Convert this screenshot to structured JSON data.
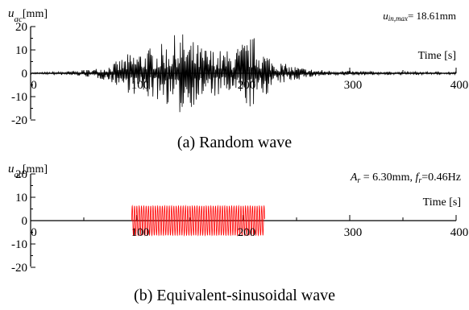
{
  "charts": [
    {
      "y_symbol": "u",
      "y_subscript": "ac",
      "y_unit": "[mm]",
      "x_label": "Time [s]",
      "annotation": "u",
      "annotation_sub": "in,max",
      "annotation_value": "= 18.61mm",
      "caption": "(a) Random wave"
    },
    {
      "y_symbol": "u",
      "y_subscript": "ac",
      "y_unit": "[mm]",
      "x_label": "Time [s]",
      "annotation_A": "A",
      "annotation_A_sub": "r",
      "annotation_A_value": " = 6.30mm, ",
      "annotation_f": "f",
      "annotation_f_sub": "r",
      "annotation_f_value": "=0.46Hz",
      "caption": "(b) Equivalent-sinusoidal wave"
    }
  ],
  "chart_data": [
    {
      "type": "line",
      "title": "(a) Random wave",
      "xlabel": "Time [s]",
      "ylabel": "u_ac [mm]",
      "xlim": [
        0,
        400
      ],
      "ylim": [
        -20,
        20
      ],
      "x_ticks": [
        "0",
        "100",
        "200",
        "300",
        "400"
      ],
      "y_ticks": [
        "20",
        "10",
        "0",
        "-10",
        "-20"
      ],
      "series": [
        {
          "signal": "random",
          "color": "#000000",
          "x": [
            0,
            10,
            20,
            30,
            40,
            50,
            60,
            70,
            80,
            90,
            100,
            110,
            120,
            130,
            140,
            150,
            160,
            170,
            180,
            190,
            200,
            210,
            220,
            230,
            240,
            250,
            260,
            270,
            280,
            290,
            300,
            310,
            320,
            330,
            340,
            350,
            360,
            370,
            380,
            390,
            400
          ],
          "envelope_mm": [
            0.4,
            0.4,
            0.6,
            0.8,
            1.0,
            1.4,
            2.0,
            3.0,
            5.0,
            8.0,
            10.0,
            11.0,
            12.0,
            14.0,
            18.61,
            15.0,
            12.0,
            11.0,
            10.0,
            10.0,
            14.0,
            16.0,
            10.0,
            6.0,
            4.0,
            3.0,
            2.0,
            1.6,
            1.3,
            1.1,
            1.0,
            0.9,
            0.8,
            0.8,
            0.7,
            0.7,
            0.7,
            0.6,
            0.6,
            0.6,
            0.6
          ]
        }
      ],
      "annotation": "u_in,max = 18.61mm",
      "grid": false
    },
    {
      "type": "line",
      "title": "(b) Equivalent-sinusoidal wave",
      "xlabel": "Time [s]",
      "ylabel": "u_ac [mm]",
      "xlim": [
        0,
        400
      ],
      "ylim": [
        -20,
        20
      ],
      "x_ticks": [
        "0",
        "100",
        "200",
        "300",
        "400"
      ],
      "y_ticks": [
        "20",
        "10",
        "0",
        "-10",
        "-20"
      ],
      "series": [
        {
          "signal": "sinusoid",
          "color": "#ff0000",
          "amplitude_mm": 6.3,
          "frequency_hz": 0.46,
          "t_start": 95,
          "t_end": 220
        }
      ],
      "annotation": "A_r = 6.30mm, f_r=0.46Hz",
      "grid": false
    }
  ]
}
